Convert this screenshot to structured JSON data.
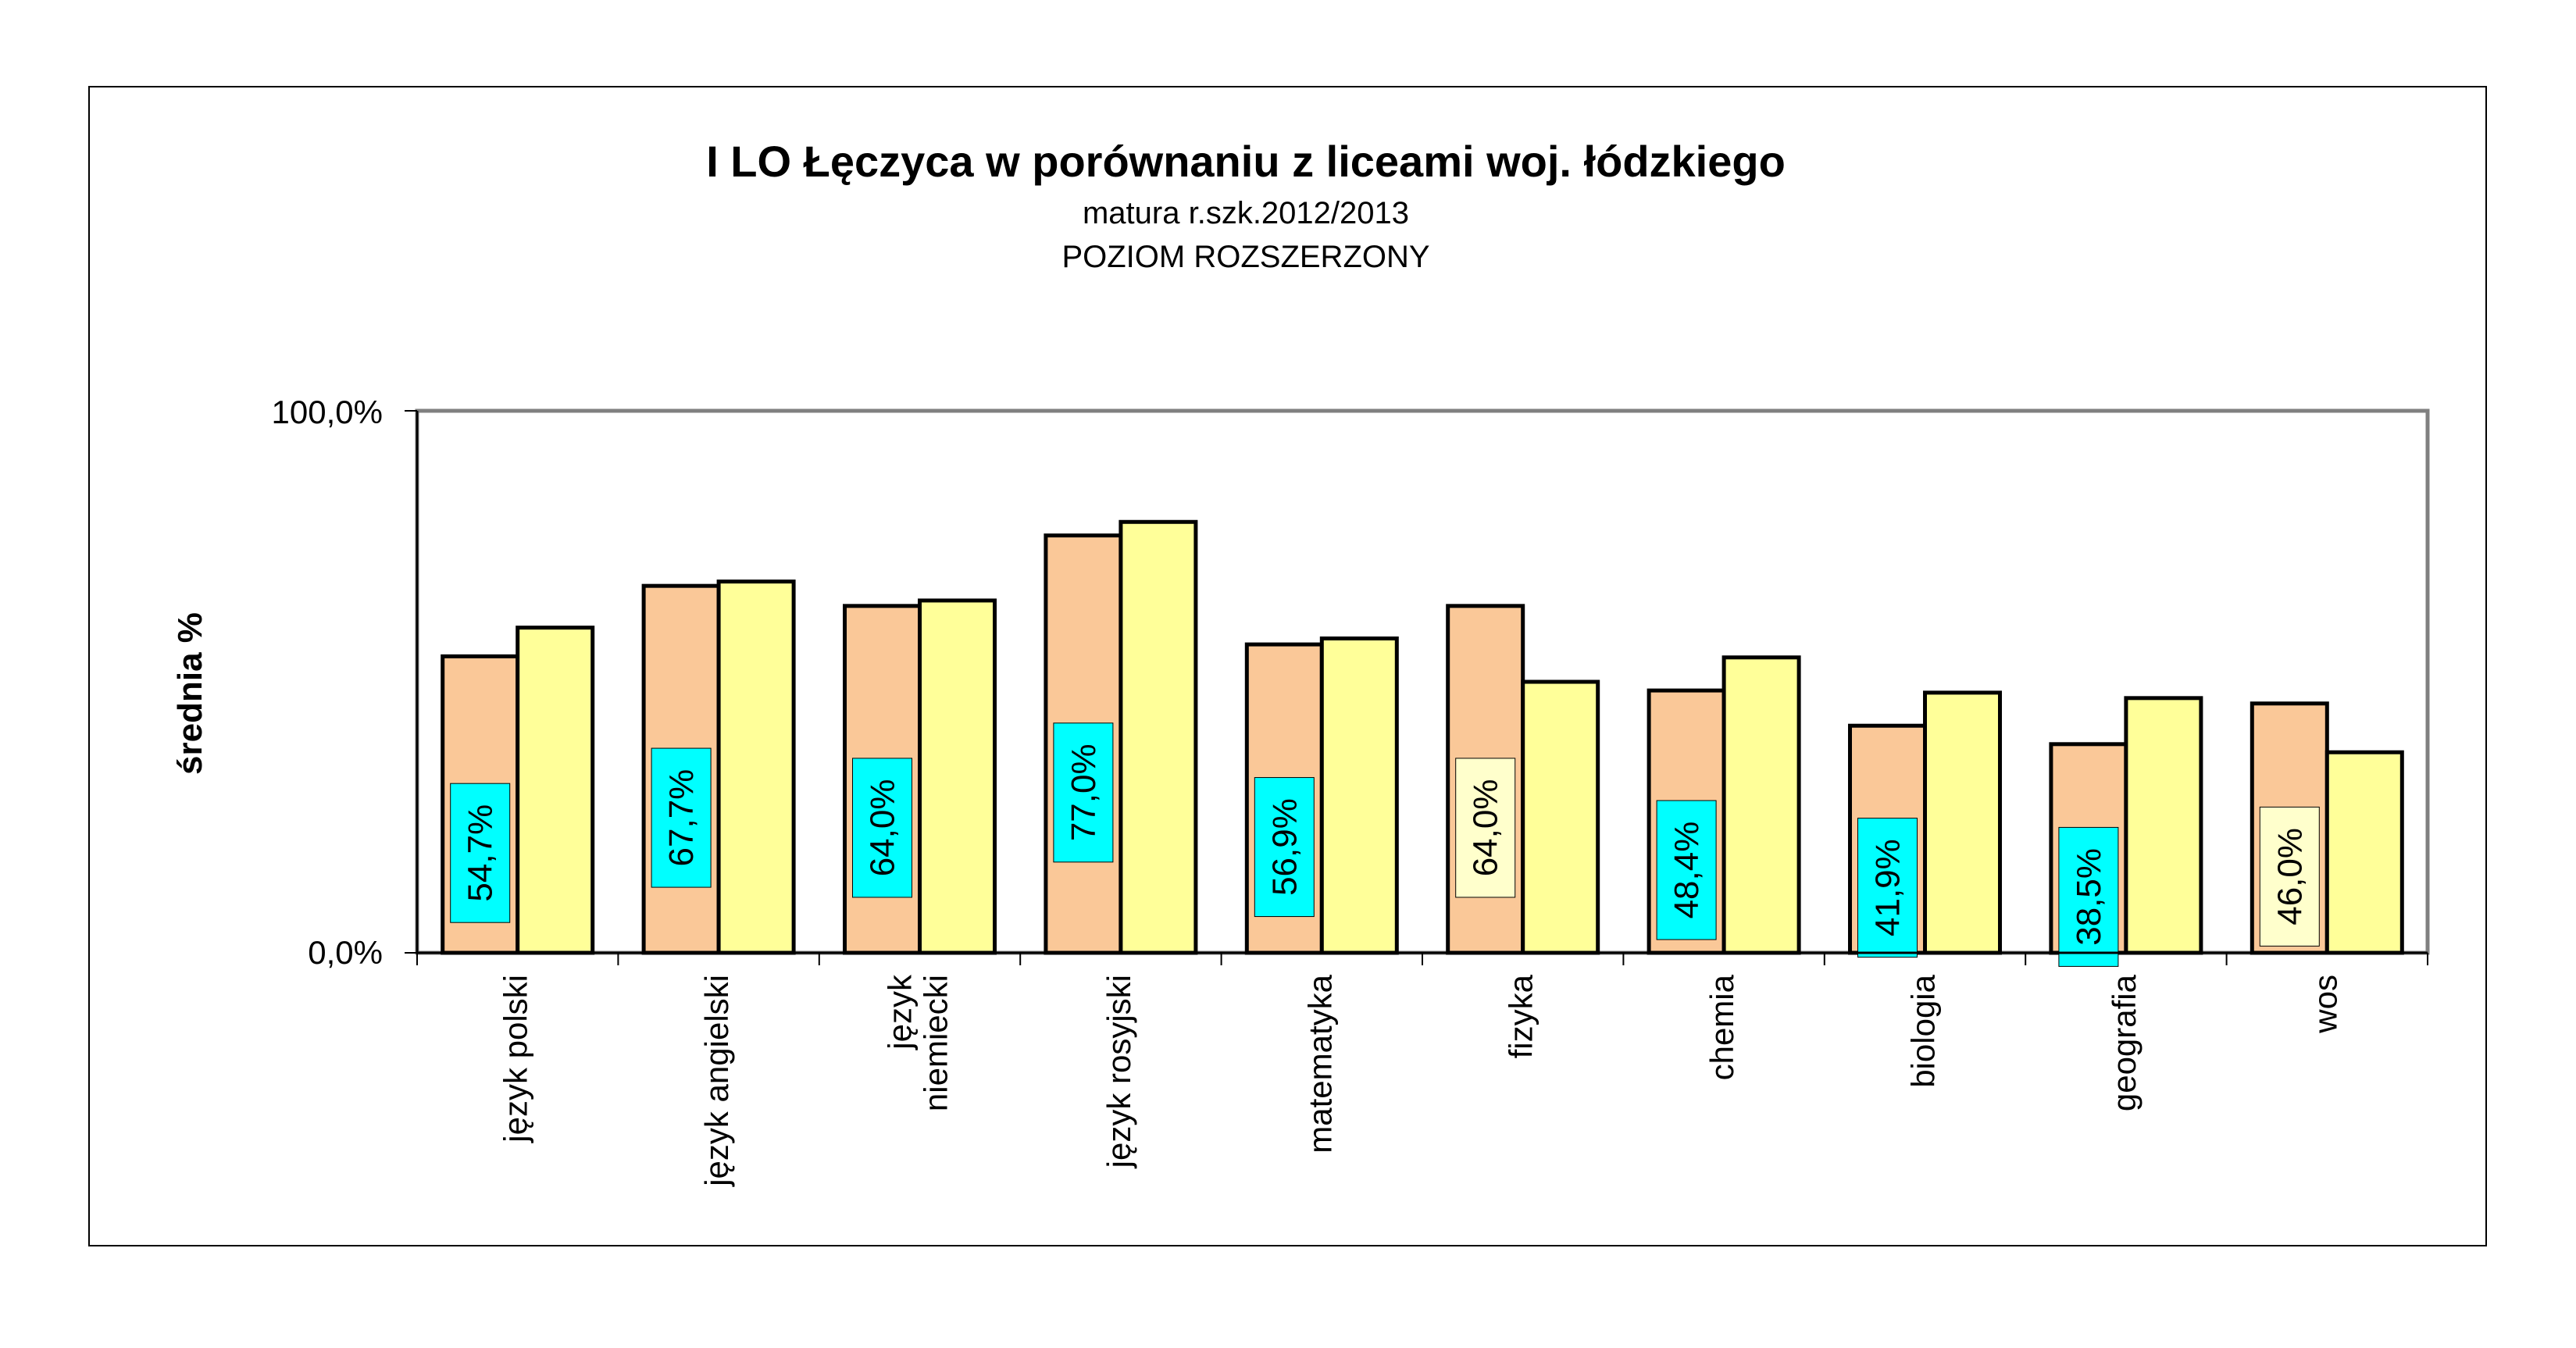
{
  "chart_data": {
    "type": "bar",
    "title": "I LO Łęczyca w porównaniu z liceami woj. łódzkiego",
    "subtitle_lines": [
      "matura  r.szk.2012/2013",
      "POZIOM ROZSZERZONY"
    ],
    "ylabel": "średnia  %",
    "ylim": [
      0,
      100
    ],
    "y_ticks": [
      "0,0%",
      "100,0%"
    ],
    "categories": [
      [
        "język polski"
      ],
      [
        "język angielski"
      ],
      [
        "język",
        "niemiecki"
      ],
      [
        "język rosyjski"
      ],
      [
        "matematyka"
      ],
      [
        "fizyka"
      ],
      [
        "chemia"
      ],
      [
        "biologia"
      ],
      [
        "geografia"
      ],
      [
        "wos"
      ]
    ],
    "series": [
      {
        "values": [
          54.7,
          67.7,
          64.0,
          77.0,
          56.9,
          64.0,
          48.4,
          41.9,
          38.5,
          46.0
        ],
        "color": "#fac898"
      },
      {
        "values": [
          60.0,
          68.5,
          65.0,
          79.5,
          58.0,
          50.0,
          54.5,
          48.0,
          47.0,
          37.0
        ],
        "color": "#ffff99"
      }
    ],
    "data_labels": [
      "54,7%",
      "67,7%",
      "64,0%",
      "77,0%",
      "56,9%",
      "64,0%",
      "48,4%",
      "41,9%",
      "38,5%",
      "46,0%"
    ],
    "label_colors": [
      "#00ffff",
      "#00ffff",
      "#00ffff",
      "#00ffff",
      "#00ffff",
      "#ffffcc",
      "#00ffff",
      "#00ffff",
      "#00ffff",
      "#ffffcc"
    ],
    "grid": false,
    "legend": "none"
  }
}
